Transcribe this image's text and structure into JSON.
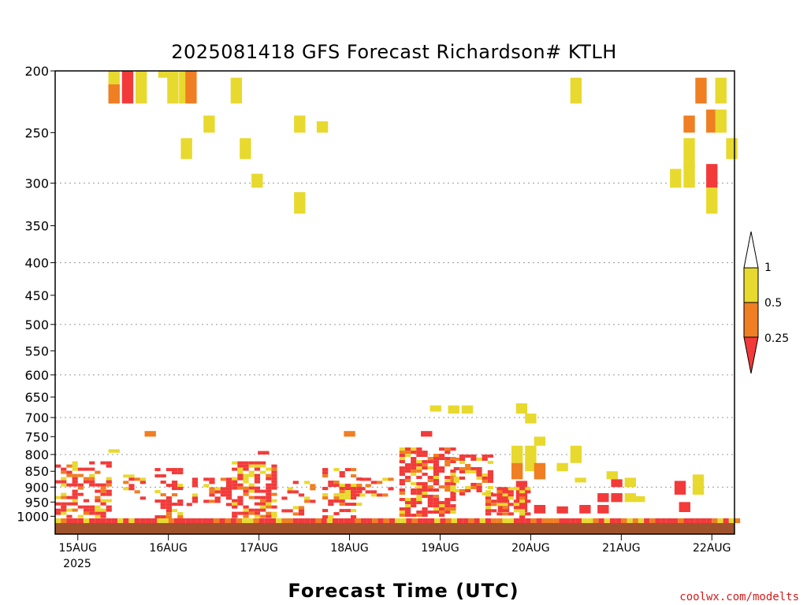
{
  "chart_data": {
    "type": "heatmap",
    "title": "2025081418 GFS Forecast Richardson# KTLH",
    "xlabel": "Forecast Time (UTC)",
    "ylabel": "",
    "credit": "coolwx.com/modelts",
    "x_start_label_year": "2025",
    "x_ticks": [
      "15AUG",
      "16AUG",
      "17AUG",
      "18AUG",
      "19AUG",
      "20AUG",
      "21AUG",
      "22AUG"
    ],
    "x_range_days": [
      14.75,
      22.25
    ],
    "y_scale": "log",
    "y_ticks": [
      200,
      250,
      300,
      350,
      400,
      450,
      500,
      550,
      600,
      650,
      700,
      750,
      800,
      850,
      900,
      950,
      1000
    ],
    "y_gridlines": [
      300,
      400,
      500,
      600,
      700,
      800,
      900
    ],
    "y_range": [
      200,
      1025
    ],
    "colorbar": {
      "labels": [
        "1",
        "0.5",
        "0.25"
      ],
      "colors": {
        "above1": "#ffffff",
        "band_0.5_1": "#e8d92e",
        "band_0.25_0.5": "#f07e22",
        "below0.25": "#f23a3a"
      }
    },
    "ground_color": "#a0522d",
    "cells": [
      {
        "t": 15.4,
        "p1": 200,
        "p2": 225,
        "cls": "y"
      },
      {
        "t": 15.4,
        "p1": 210,
        "p2": 225,
        "cls": "o"
      },
      {
        "t": 15.55,
        "p1": 200,
        "p2": 225,
        "cls": "r"
      },
      {
        "t": 15.7,
        "p1": 200,
        "p2": 225,
        "cls": "y"
      },
      {
        "t": 15.95,
        "p1": 200,
        "p2": 205,
        "cls": "y"
      },
      {
        "t": 16.05,
        "p1": 200,
        "p2": 225,
        "cls": "y"
      },
      {
        "t": 16.18,
        "p1": 200,
        "p2": 225,
        "cls": "y"
      },
      {
        "t": 16.25,
        "p1": 200,
        "p2": 225,
        "cls": "o"
      },
      {
        "t": 16.45,
        "p1": 235,
        "p2": 250,
        "cls": "y"
      },
      {
        "t": 16.2,
        "p1": 255,
        "p2": 275,
        "cls": "y"
      },
      {
        "t": 16.75,
        "p1": 205,
        "p2": 225,
        "cls": "y"
      },
      {
        "t": 16.85,
        "p1": 255,
        "p2": 275,
        "cls": "y"
      },
      {
        "t": 16.98,
        "p1": 290,
        "p2": 305,
        "cls": "y"
      },
      {
        "t": 17.45,
        "p1": 235,
        "p2": 250,
        "cls": "y"
      },
      {
        "t": 17.7,
        "p1": 240,
        "p2": 250,
        "cls": "y"
      },
      {
        "t": 17.45,
        "p1": 310,
        "p2": 335,
        "cls": "y"
      },
      {
        "t": 20.5,
        "p1": 205,
        "p2": 225,
        "cls": "y"
      },
      {
        "t": 21.6,
        "p1": 285,
        "p2": 305,
        "cls": "y"
      },
      {
        "t": 21.75,
        "p1": 235,
        "p2": 250,
        "cls": "o"
      },
      {
        "t": 21.75,
        "p1": 255,
        "p2": 285,
        "cls": "y"
      },
      {
        "t": 21.75,
        "p1": 280,
        "p2": 305,
        "cls": "y"
      },
      {
        "t": 21.88,
        "p1": 205,
        "p2": 225,
        "cls": "o"
      },
      {
        "t": 22.0,
        "p1": 230,
        "p2": 250,
        "cls": "o"
      },
      {
        "t": 22.0,
        "p1": 280,
        "p2": 305,
        "cls": "r"
      },
      {
        "t": 22.0,
        "p1": 305,
        "p2": 335,
        "cls": "y"
      },
      {
        "t": 22.1,
        "p1": 205,
        "p2": 225,
        "cls": "y"
      },
      {
        "t": 22.1,
        "p1": 230,
        "p2": 250,
        "cls": "y"
      },
      {
        "t": 22.22,
        "p1": 255,
        "p2": 275,
        "cls": "y"
      },
      {
        "t": 15.4,
        "p1": 785,
        "p2": 795,
        "cls": "y"
      },
      {
        "t": 15.8,
        "p1": 735,
        "p2": 750,
        "cls": "o"
      },
      {
        "t": 17.05,
        "p1": 790,
        "p2": 800,
        "cls": "r"
      },
      {
        "t": 18.0,
        "p1": 735,
        "p2": 750,
        "cls": "o"
      },
      {
        "t": 18.85,
        "p1": 735,
        "p2": 750,
        "cls": "r"
      },
      {
        "t": 18.95,
        "p1": 670,
        "p2": 685,
        "cls": "y"
      },
      {
        "t": 19.15,
        "p1": 670,
        "p2": 690,
        "cls": "y"
      },
      {
        "t": 19.3,
        "p1": 670,
        "p2": 690,
        "cls": "y"
      },
      {
        "t": 19.9,
        "p1": 665,
        "p2": 690,
        "cls": "y"
      },
      {
        "t": 20.0,
        "p1": 690,
        "p2": 715,
        "cls": "y"
      },
      {
        "t": 20.1,
        "p1": 750,
        "p2": 775,
        "cls": "y"
      },
      {
        "t": 19.85,
        "p1": 775,
        "p2": 825,
        "cls": "y"
      },
      {
        "t": 19.85,
        "p1": 825,
        "p2": 875,
        "cls": "o"
      },
      {
        "t": 20.0,
        "p1": 775,
        "p2": 850,
        "cls": "y"
      },
      {
        "t": 20.1,
        "p1": 825,
        "p2": 875,
        "cls": "o"
      },
      {
        "t": 20.35,
        "p1": 825,
        "p2": 850,
        "cls": "y"
      },
      {
        "t": 20.5,
        "p1": 775,
        "p2": 825,
        "cls": "y"
      },
      {
        "t": 20.55,
        "p1": 870,
        "p2": 885,
        "cls": "y"
      },
      {
        "t": 20.9,
        "p1": 850,
        "p2": 875,
        "cls": "y"
      },
      {
        "t": 20.95,
        "p1": 875,
        "p2": 900,
        "cls": "r"
      },
      {
        "t": 21.1,
        "p1": 870,
        "p2": 900,
        "cls": "y"
      },
      {
        "t": 20.8,
        "p1": 920,
        "p2": 950,
        "cls": "r"
      },
      {
        "t": 20.95,
        "p1": 920,
        "p2": 950,
        "cls": "r"
      },
      {
        "t": 21.1,
        "p1": 920,
        "p2": 950,
        "cls": "y"
      },
      {
        "t": 21.2,
        "p1": 930,
        "p2": 950,
        "cls": "y"
      },
      {
        "t": 21.65,
        "p1": 880,
        "p2": 925,
        "cls": "r"
      },
      {
        "t": 21.85,
        "p1": 860,
        "p2": 885,
        "cls": "y"
      },
      {
        "t": 21.85,
        "p1": 885,
        "p2": 925,
        "cls": "y"
      },
      {
        "t": 21.7,
        "p1": 950,
        "p2": 985,
        "cls": "r"
      },
      {
        "t": 19.7,
        "p1": 900,
        "p2": 985,
        "cls": "r"
      },
      {
        "t": 19.9,
        "p1": 880,
        "p2": 985,
        "cls": "r"
      },
      {
        "t": 20.1,
        "p1": 960,
        "p2": 990,
        "cls": "r"
      },
      {
        "t": 20.35,
        "p1": 965,
        "p2": 990,
        "cls": "r"
      },
      {
        "t": 20.6,
        "p1": 960,
        "p2": 990,
        "cls": "r"
      },
      {
        "t": 20.8,
        "p1": 960,
        "p2": 990,
        "cls": "r"
      }
    ],
    "blobs": [
      {
        "t1": 14.75,
        "t2": 15.35,
        "p_top": 820,
        "p_bot": 1000,
        "density": 0.5
      },
      {
        "t1": 15.5,
        "t2": 15.75,
        "p_top": 860,
        "p_bot": 960,
        "density": 0.35
      },
      {
        "t1": 15.85,
        "t2": 16.15,
        "p_top": 840,
        "p_bot": 1000,
        "density": 0.55
      },
      {
        "t1": 16.2,
        "t2": 16.65,
        "p_top": 870,
        "p_bot": 960,
        "density": 0.45
      },
      {
        "t1": 16.7,
        "t2": 17.2,
        "p_top": 820,
        "p_bot": 1000,
        "density": 0.6
      },
      {
        "t1": 17.25,
        "t2": 17.6,
        "p_top": 880,
        "p_bot": 990,
        "density": 0.3
      },
      {
        "t1": 17.7,
        "t2": 18.1,
        "p_top": 840,
        "p_bot": 1000,
        "density": 0.55
      },
      {
        "t1": 18.05,
        "t2": 18.45,
        "p_top": 870,
        "p_bot": 930,
        "density": 0.3
      },
      {
        "t1": 18.55,
        "t2": 19.15,
        "p_top": 780,
        "p_bot": 1000,
        "density": 0.65
      },
      {
        "t1": 19.15,
        "t2": 19.55,
        "p_top": 800,
        "p_bot": 920,
        "density": 0.55
      },
      {
        "t1": 19.5,
        "t2": 19.95,
        "p_top": 900,
        "p_bot": 1000,
        "density": 0.55
      }
    ]
  }
}
